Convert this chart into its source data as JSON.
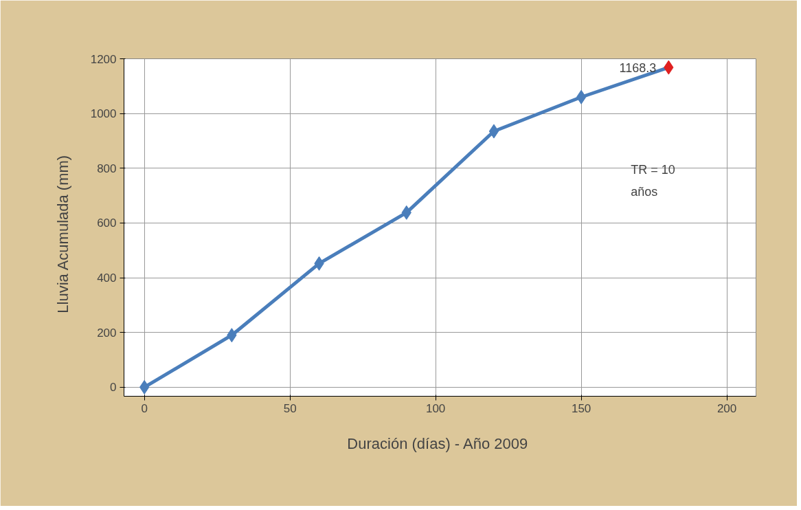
{
  "chart_data": {
    "type": "line",
    "xlabel": "Duración (días)  - Año 2009",
    "ylabel": "Lluvia Acumulada    (mm)",
    "x": [
      0,
      30,
      60,
      90,
      120,
      150,
      180
    ],
    "series": [
      {
        "color": "#4a7ebb",
        "values": [
          0,
          190,
          452,
          638,
          935,
          1060,
          1168.3
        ],
        "colors": [
          "#4a7ebb",
          "#4a7ebb",
          "#4a7ebb",
          "#4a7ebb",
          "#4a7ebb",
          "#4a7ebb",
          "#e02020"
        ]
      }
    ],
    "xlim": [
      -7,
      210
    ],
    "ylim": [
      -33,
      1200
    ],
    "xticks": [
      0,
      50,
      100,
      150,
      200
    ],
    "yticks": [
      0,
      200,
      400,
      600,
      800,
      1000,
      1200
    ],
    "grid": true,
    "marker": "diamond",
    "line_style": "solid",
    "annotations": [
      {
        "text": "1168.3",
        "x": 180,
        "y": 1168.3
      },
      "TR =  10\naños"
    ]
  }
}
